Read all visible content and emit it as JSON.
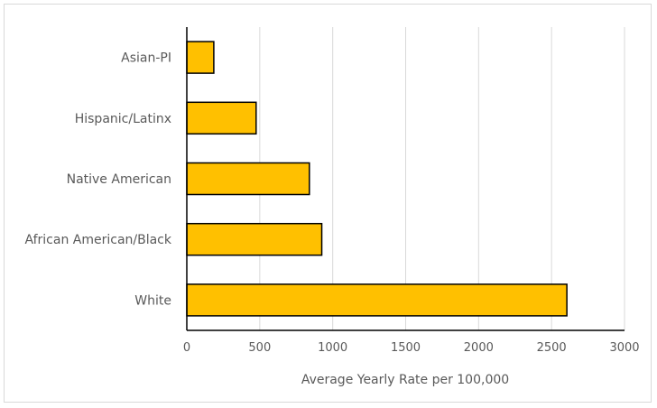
{
  "chart_data": {
    "type": "bar",
    "orientation": "horizontal",
    "title": "",
    "xlabel": "Average Yearly Rate per 100,000",
    "ylabel": "",
    "categories": [
      "Asian-PI",
      "Hispanic/Latinx",
      "Native American",
      "African American/Black",
      "White"
    ],
    "values": [
      185,
      475,
      840,
      925,
      2605
    ],
    "xlim": [
      0,
      3000
    ],
    "x_ticks": [
      "0",
      "500",
      "1000",
      "1500",
      "2000",
      "2500",
      "3000"
    ],
    "grid": "vertical",
    "legend": "none",
    "colors": {
      "bar_fill": "#FFC000",
      "bar_stroke": "#000000",
      "grid": "#d9d9d9",
      "axis": "#000000",
      "text": "#595959"
    }
  }
}
